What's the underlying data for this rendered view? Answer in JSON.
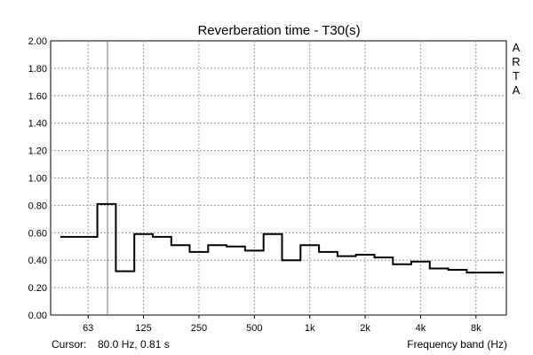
{
  "chart_data": {
    "type": "line",
    "title": "Reverberation time - T30(s)",
    "xlabel": "Frequency band (Hz)",
    "ylabel": "",
    "ylim": [
      0,
      2
    ],
    "yticks": [
      "0.00",
      "0.20",
      "0.40",
      "0.60",
      "0.80",
      "1.00",
      "1.20",
      "1.40",
      "1.60",
      "1.80",
      "2.00"
    ],
    "x_tick_labels": [
      {
        "band": 1,
        "label": "63"
      },
      {
        "band": 4,
        "label": "125"
      },
      {
        "band": 7,
        "label": "250"
      },
      {
        "band": 10,
        "label": "500"
      },
      {
        "band": 13,
        "label": "1k"
      },
      {
        "band": 16,
        "label": "2k"
      },
      {
        "band": 19,
        "label": "4k"
      },
      {
        "band": 22,
        "label": "8k"
      }
    ],
    "grid": true,
    "series": [
      {
        "bands": [
          "50",
          "63",
          "80",
          "100",
          "125",
          "160",
          "200",
          "250",
          "315",
          "400",
          "500",
          "630",
          "800",
          "1k",
          "1.25k",
          "1.6k",
          "2k",
          "2.5k",
          "3.15k",
          "4k",
          "5k",
          "6.3k",
          "8k",
          "10k"
        ],
        "values": [
          0.57,
          0.57,
          0.81,
          0.32,
          0.59,
          0.57,
          0.51,
          0.46,
          0.51,
          0.5,
          0.47,
          0.59,
          0.4,
          0.51,
          0.46,
          0.43,
          0.44,
          0.42,
          0.37,
          0.39,
          0.34,
          0.33,
          0.31,
          0.31
        ]
      }
    ],
    "cursor": {
      "label": "Cursor:",
      "readout": "80.0 Hz, 0.81 s",
      "band": 2
    },
    "watermark": "ARTA"
  }
}
